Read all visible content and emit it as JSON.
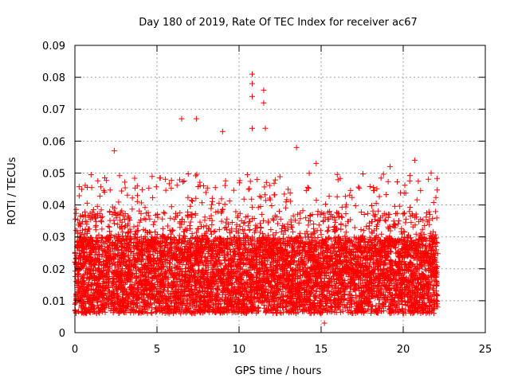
{
  "chart_data": {
    "type": "scatter",
    "title": "Day 180 of 2019, Rate Of TEC Index for receiver ac67",
    "xlabel": "GPS time / hours",
    "ylabel": "ROTI / TECUs",
    "xlim": [
      0,
      25
    ],
    "ylim": [
      0,
      0.09
    ],
    "x_ticks": [
      "0",
      "5",
      "10",
      "15",
      "20",
      "25"
    ],
    "y_ticks": [
      "0",
      "0.01",
      "0.02",
      "0.03",
      "0.04",
      "0.05",
      "0.06",
      "0.07",
      "0.08",
      "0.09"
    ],
    "grid": true,
    "marker": "+",
    "color": "#ff0000",
    "data_extent_x": [
      0,
      22.1
    ],
    "typical_range_y": [
      0.005,
      0.045
    ],
    "notable_points": [
      {
        "x": 2.4,
        "y": 0.057
      },
      {
        "x": 6.5,
        "y": 0.067
      },
      {
        "x": 7.4,
        "y": 0.067
      },
      {
        "x": 9.0,
        "y": 0.063
      },
      {
        "x": 10.8,
        "y": 0.081
      },
      {
        "x": 10.8,
        "y": 0.078
      },
      {
        "x": 10.8,
        "y": 0.074
      },
      {
        "x": 10.8,
        "y": 0.064
      },
      {
        "x": 11.5,
        "y": 0.076
      },
      {
        "x": 11.5,
        "y": 0.072
      },
      {
        "x": 11.6,
        "y": 0.064
      },
      {
        "x": 13.5,
        "y": 0.058
      },
      {
        "x": 14.7,
        "y": 0.053
      },
      {
        "x": 19.2,
        "y": 0.052
      },
      {
        "x": 20.7,
        "y": 0.054
      },
      {
        "x": 21.7,
        "y": 0.05
      },
      {
        "x": 15.2,
        "y": 0.003
      }
    ]
  }
}
